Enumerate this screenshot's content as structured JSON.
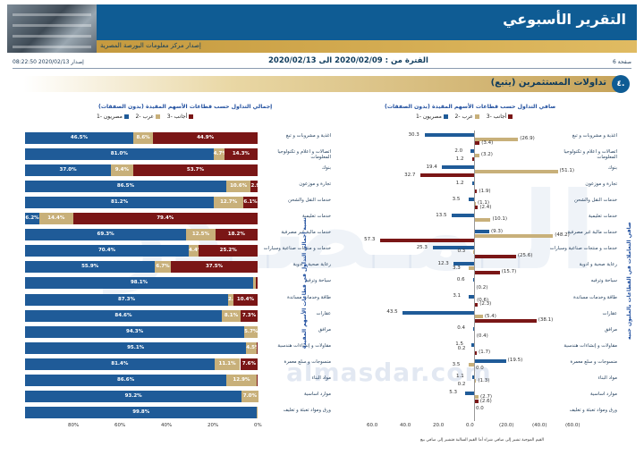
{
  "header": {
    "title": "التقرير الأسبوعي",
    "subtitle": "إصدار مركز معلومات البورصة المصرية"
  },
  "meta": {
    "issue": "إصدار 2020/02/13 08:22:50",
    "period": "الفترة من : 2020/02/09 الى 2020/02/13",
    "page": "صفحة 6"
  },
  "section": {
    "number": "٤.",
    "title": "تداولات المستثمرين (يتبع)"
  },
  "watermark": "almasdar.com",
  "footnote": "القيم الموجبة تشير إلى صافي شراء أما القيم السالبة فتشير إلى صافي بيع",
  "chart_data": [
    {
      "type": "bar",
      "orientation": "horizontal",
      "stacked": true,
      "percent": true,
      "title": "إجمالي التداول حسب قطاعات الأسهم المقيدة (بدون الصفقات)",
      "side_label": "نسبة إجمالي التداول في قطاعات الأسهم المقيدة",
      "legend": [
        "مصريون -1",
        "عرب -2",
        "أجانب -3"
      ],
      "colors": [
        "#1f5b98",
        "#c8b07a",
        "#7a1616"
      ],
      "xlim": [
        0,
        100
      ],
      "ticks": [
        "80%",
        "60%",
        "40%",
        "20%",
        "0%"
      ],
      "categories": [
        "اغذية و مشروبات و تبغ",
        "اتصالات و اعلام و تكنولوجيا المعلومات",
        "بنوك",
        "تجارة و موزعون",
        "خدمات النقل والشحن",
        "خدمات تعليمية",
        "خدمات مالية غير مصرفية",
        "خدمات و منتجات صناعية وسيارات",
        "رعاية صحية و ادوية",
        "سياحة وترفيه",
        "طاقة وخدمات مساندة",
        "عقارات",
        "مرافق",
        "مقاولات و إنشاءات هندسية",
        "منسوجات و سلع معمرة",
        "مواد البناء",
        "موارد اساسية",
        "ورق ومواد تعبئة و تغليف"
      ],
      "series": [
        {
          "name": "مصريون -1",
          "values": [
            46.5,
            81.0,
            37.0,
            86.5,
            81.2,
            6.2,
            69.3,
            70.4,
            55.9,
            98.1,
            87.3,
            84.6,
            94.3,
            95.1,
            81.4,
            86.6,
            93.2,
            99.8
          ]
        },
        {
          "name": "عرب -2",
          "values": [
            8.6,
            4.7,
            9.4,
            10.6,
            12.7,
            14.4,
            12.5,
            4.4,
            6.7,
            1.3,
            2.3,
            8.1,
            5.7,
            4.5,
            11.1,
            12.9,
            7.0,
            0.2
          ]
        },
        {
          "name": "أجانب -3",
          "values": [
            44.9,
            14.3,
            53.7,
            2.9,
            6.1,
            79.4,
            18.2,
            25.2,
            37.5,
            0.6,
            10.4,
            7.3,
            0.0,
            0.4,
            7.6,
            0.5,
            0.0,
            0.0
          ]
        }
      ],
      "labels": [
        [
          "46.5%",
          "8.6%",
          "44.9%"
        ],
        [
          "81.0%",
          "4.7%",
          "14.3%"
        ],
        [
          "37.0%",
          "9.4%",
          "53.7%"
        ],
        [
          "86.5%",
          "10.6%",
          "2.9%"
        ],
        [
          "81.2%",
          "12.7%",
          "6.1%"
        ],
        [
          "6.2%",
          "14.4%",
          "79.4%"
        ],
        [
          "69.3%",
          "12.5%",
          "18.2%"
        ],
        [
          "70.4%",
          "4.4%",
          "25.2%"
        ],
        [
          "55.9%",
          "6.7%",
          "37.5%"
        ],
        [
          "98.1%",
          "",
          ""
        ],
        [
          "87.3%",
          "2.3%",
          "10.4%"
        ],
        [
          "84.6%",
          "8.1%",
          "7.3%"
        ],
        [
          "94.3%",
          "5.7%",
          ""
        ],
        [
          "95.1%",
          "4.5%",
          ""
        ],
        [
          "81.4%",
          "11.1%",
          "7.6%"
        ],
        [
          "86.6%",
          "12.9%",
          ""
        ],
        [
          "93.2%",
          "7.0%",
          ""
        ],
        [
          "99.8%",
          "",
          ""
        ]
      ]
    },
    {
      "type": "bar",
      "orientation": "horizontal",
      "title": "صافي التداول حسب قطاعات الأسهم المقيدة (بدون الصفقات)",
      "side_label": "صافي التعاملات في القطاعات بالمليون جنيه",
      "legend": [
        "مصريون -1",
        "عرب -2",
        "أجانب -3"
      ],
      "colors": [
        "#1f5b98",
        "#c8b07a",
        "#7a1616"
      ],
      "xlim": [
        -60,
        60
      ],
      "ticks": [
        "60.0",
        "40.0",
        "20.0",
        "0.0",
        "(20.0)",
        "(40.0)",
        "(60.0)"
      ],
      "categories": [
        "اغذية و مشروبات و تبغ",
        "اتصالات و اعلام و تكنولوجيا المعلومات",
        "بنوك",
        "تجارة و موزعون",
        "خدمات النقل والشحن",
        "خدمات تعليمية",
        "خدمات مالية غير مصرفية",
        "خدمات و منتجات صناعية وسيارات",
        "رعاية صحية و ادوية",
        "سياحة وترفيه",
        "طاقة وخدمات مساندة",
        "عقارات",
        "مرافق",
        "مقاولات و إنشاءات هندسية",
        "منسوجات و سلع معمرة",
        "مواد البناء",
        "موارد اساسية",
        "ورق ومواد تعبئة و تغليف"
      ],
      "series": [
        {
          "name": "مصريون -1",
          "values": [
            30.3,
            2.0,
            19.4,
            1.2,
            3.5,
            13.5,
            -9.3,
            25.3,
            12.3,
            0.6,
            3.1,
            43.5,
            0.4,
            1.5,
            -19.5,
            1.1,
            5.3,
            0.0
          ]
        },
        {
          "name": "عرب -2",
          "values": [
            -26.9,
            -3.2,
            -51.1,
            0.0,
            -1.1,
            -10.1,
            -48.2,
            0.3,
            3.3,
            0.0,
            -0.6,
            -5.4,
            0.0,
            0.2,
            3.5,
            -1.3,
            -2.7,
            0.0
          ]
        },
        {
          "name": "أجانب -3",
          "values": [
            -3.4,
            1.2,
            32.7,
            -1.9,
            -2.4,
            0.0,
            57.3,
            -25.6,
            -15.7,
            -0.2,
            -2.3,
            -38.1,
            -0.4,
            -1.7,
            0.0,
            0.2,
            -2.6,
            0.0
          ]
        }
      ],
      "labels": [
        [
          "30.3",
          "(26.9)",
          "(3.4)"
        ],
        [
          "2.0",
          "(3.2)",
          "1.2"
        ],
        [
          "19.4",
          "(51.1)",
          "32.7"
        ],
        [
          "1.2",
          "",
          "(1.9)"
        ],
        [
          "3.5",
          "(1.1)",
          "(2.4)"
        ],
        [
          "13.5",
          "(10.1)",
          ""
        ],
        [
          "(9.3)",
          "(48.2)",
          "57.3"
        ],
        [
          "25.3",
          "0.3",
          "(25.6)"
        ],
        [
          "12.3",
          "3.3",
          "(15.7)"
        ],
        [
          "0.6",
          "",
          "(0.2)"
        ],
        [
          "3.1",
          "(0.6)",
          "(2.3)"
        ],
        [
          "43.5",
          "(5.4)",
          "(38.1)"
        ],
        [
          "0.4",
          "",
          "(0.4)"
        ],
        [
          "1.5",
          "0.2",
          "(1.7)"
        ],
        [
          "(19.5)",
          "3.5",
          "0.0"
        ],
        [
          "1.1",
          "(1.3)",
          "0.2"
        ],
        [
          "5.3",
          "(2.7)",
          "(2.6)"
        ],
        [
          "0.0",
          "",
          ""
        ]
      ]
    }
  ]
}
